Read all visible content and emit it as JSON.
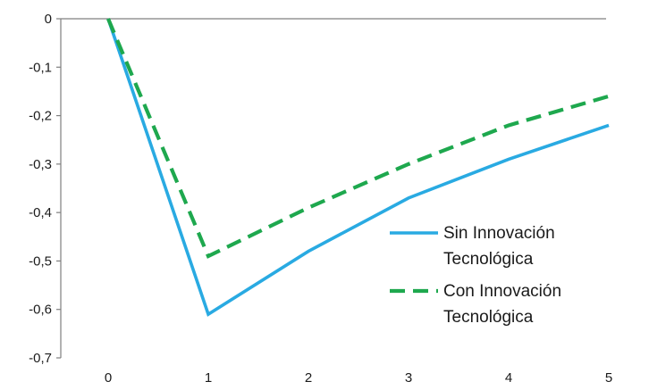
{
  "chart_data": {
    "type": "line",
    "title": "",
    "xlabel": "",
    "ylabel": "",
    "x": [
      0,
      1,
      2,
      3,
      4,
      5
    ],
    "xticks": [
      "0",
      "1",
      "2",
      "3",
      "4",
      "5"
    ],
    "xlim": [
      0,
      5
    ],
    "ylim": [
      -0.7,
      0
    ],
    "yticks": [
      0,
      -0.1,
      -0.2,
      -0.3,
      -0.4,
      -0.5,
      -0.6,
      -0.7
    ],
    "ytick_labels": [
      "0",
      "-0,1",
      "-0,2",
      "-0,3",
      "-0,4",
      "-0,5",
      "-0,6",
      "-0,7"
    ],
    "grid": false,
    "legend_position": "right",
    "series": [
      {
        "name": "Sin Innovación Tecnológica",
        "name_lines": [
          "Sin Innovación",
          "Tecnológica"
        ],
        "values": [
          0,
          -0.61,
          -0.48,
          -0.37,
          -0.29,
          -0.22
        ],
        "color": "#29aae2",
        "style": "solid"
      },
      {
        "name": "Con Innovación Tecnológica",
        "name_lines": [
          "Con Innovación",
          "Tecnológica"
        ],
        "values": [
          0,
          -0.49,
          -0.39,
          -0.3,
          -0.22,
          -0.16
        ],
        "color": "#1ea84e",
        "style": "dashed"
      }
    ]
  }
}
